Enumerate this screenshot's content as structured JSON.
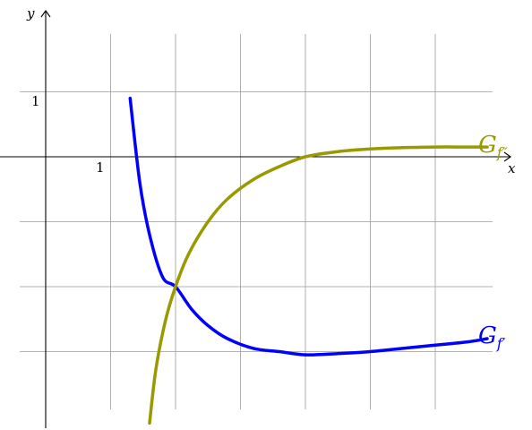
{
  "chart_data": {
    "type": "line",
    "xlabel": "x",
    "ylabel": "y",
    "x_tick_label": "1",
    "y_tick_label": "1",
    "xlim": [
      -0.7,
      7.3
    ],
    "ylim": [
      -4.2,
      2.2
    ],
    "grid": true,
    "series": [
      {
        "name": "f'",
        "label_main": "G",
        "label_sub": "f′",
        "color": "#0000ff",
        "points": [
          [
            1.3,
            0.9
          ],
          [
            1.45,
            -0.4
          ],
          [
            1.6,
            -1.2
          ],
          [
            1.8,
            -1.85
          ],
          [
            2.0,
            -2.0
          ],
          [
            2.25,
            -2.35
          ],
          [
            2.5,
            -2.6
          ],
          [
            2.8,
            -2.8
          ],
          [
            3.2,
            -2.95
          ],
          [
            3.6,
            -3.0
          ],
          [
            4.0,
            -3.05
          ],
          [
            4.5,
            -3.03
          ],
          [
            5.0,
            -3.0
          ],
          [
            5.5,
            -2.95
          ],
          [
            6.0,
            -2.9
          ],
          [
            6.5,
            -2.85
          ],
          [
            6.8,
            -2.8
          ]
        ]
      },
      {
        "name": "f''",
        "label_main": "G",
        "label_sub": "f″",
        "color": "#999900",
        "points": [
          [
            1.6,
            -4.1
          ],
          [
            1.7,
            -3.25
          ],
          [
            1.85,
            -2.5
          ],
          [
            2.0,
            -2.0
          ],
          [
            2.2,
            -1.5
          ],
          [
            2.5,
            -1.0
          ],
          [
            2.8,
            -0.65
          ],
          [
            3.2,
            -0.35
          ],
          [
            3.6,
            -0.15
          ],
          [
            4.0,
            0.0
          ],
          [
            4.5,
            0.08
          ],
          [
            5.0,
            0.12
          ],
          [
            5.5,
            0.14
          ],
          [
            6.0,
            0.15
          ],
          [
            6.5,
            0.15
          ],
          [
            6.8,
            0.15
          ]
        ]
      }
    ]
  }
}
